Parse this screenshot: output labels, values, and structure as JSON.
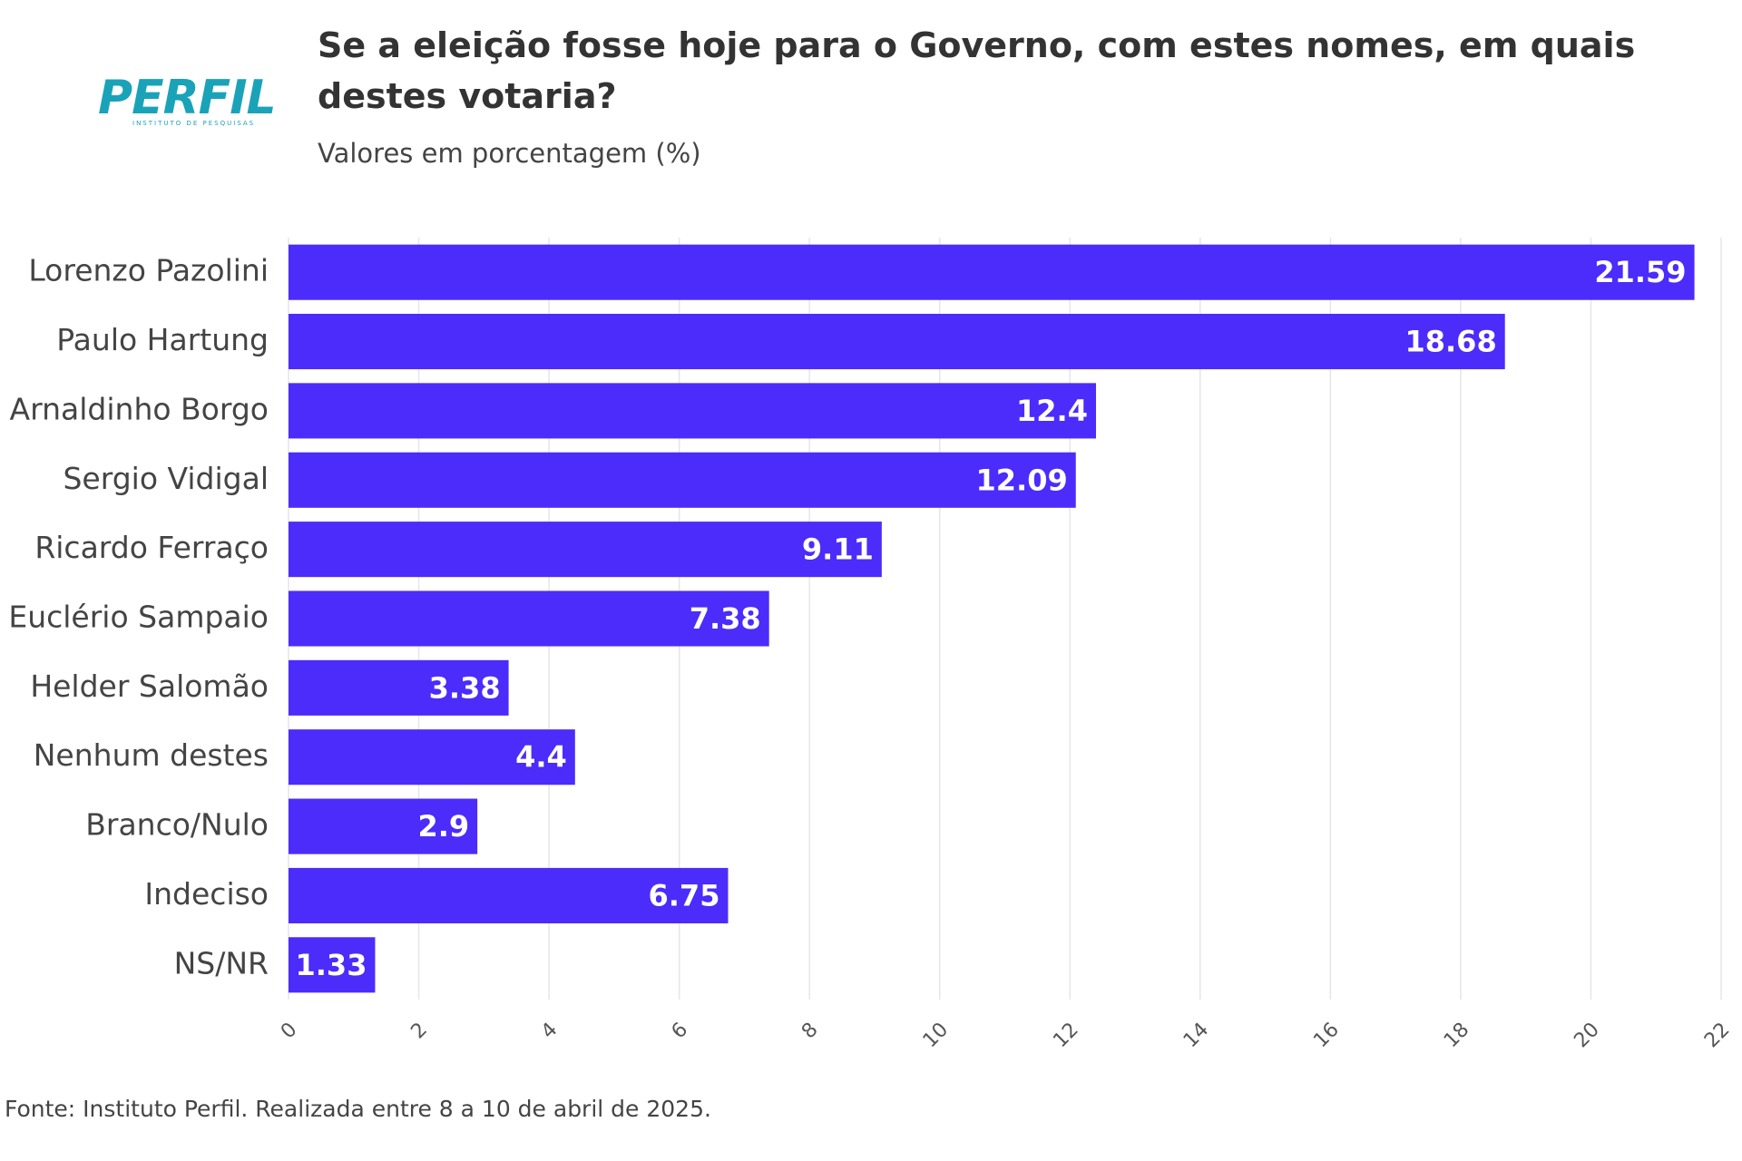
{
  "logo": {
    "text": "PERFIL",
    "subtitle": "INSTITUTO DE PESQUISAS"
  },
  "chart_data": {
    "type": "bar",
    "orientation": "horizontal",
    "title": "Se a eleição fosse hoje para o Governo, com estes nomes, em quais destes votaria?",
    "subtitle": "Valores em porcentagem (%)",
    "categories": [
      "Lorenzo Pazolini",
      "Paulo Hartung",
      "Arnaldinho Borgo",
      "Sergio Vidigal",
      "Ricardo Ferraço",
      "Euclério Sampaio",
      "Helder Salomão",
      "Nenhum destes",
      "Branco/Nulo",
      "Indeciso",
      "NS/NR"
    ],
    "values": [
      21.59,
      18.68,
      12.4,
      12.09,
      9.11,
      7.38,
      3.38,
      4.4,
      2.9,
      6.75,
      1.33
    ],
    "color": "#4b2cfa",
    "xlim": [
      0,
      22
    ],
    "xticks": [
      0,
      2,
      4,
      6,
      8,
      10,
      12,
      14,
      16,
      18,
      20,
      22
    ],
    "grid": true,
    "source": "Fonte: Instituto Perfil. Realizada entre 8 a 10 de abril de 2025."
  }
}
